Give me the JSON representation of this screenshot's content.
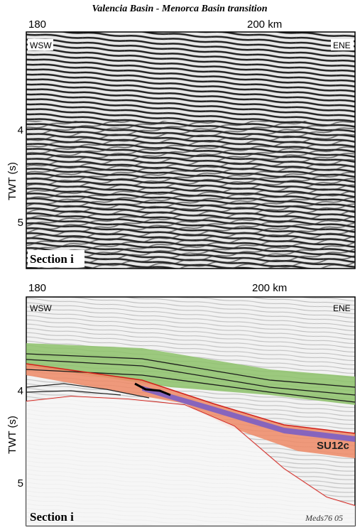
{
  "title": "Valencia Basin - Menorca Basin transition",
  "panels": [
    {
      "x_labels": [
        "180",
        "200 km"
      ],
      "y_labels": [
        "4",
        "5"
      ],
      "y_axis_title": "TWT (s)",
      "left_label": "WSW",
      "right_label": "ENE",
      "section_label": "Section i"
    },
    {
      "x_labels": [
        "180",
        "200 km"
      ],
      "y_labels": [
        "4",
        "5"
      ],
      "y_axis_title": "TWT (s)",
      "left_label": "WSW",
      "right_label": "ENE",
      "section_label": "Section i",
      "unit_label": "SU12c",
      "credit": "Meds76 05"
    }
  ]
}
